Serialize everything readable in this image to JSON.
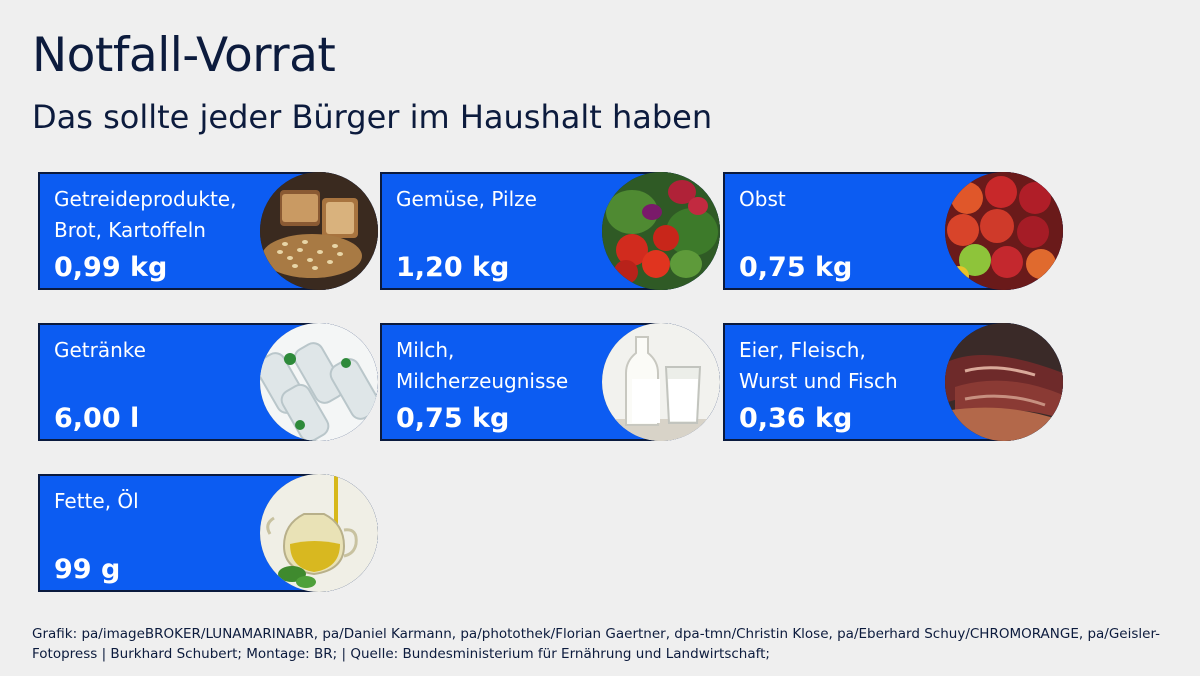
{
  "header": {
    "title": "Notfall-Vorrat",
    "subtitle": "Das sollte jeder Bürger im Haushalt haben"
  },
  "items": [
    {
      "label": "Getreideprodukte,\nBrot, Kartoffeln",
      "value": "0,99 kg",
      "icon": "bread-photo"
    },
    {
      "label": "Gemüse, Pilze",
      "value": "1,20 kg",
      "icon": "vegetables-photo"
    },
    {
      "label": "Obst",
      "value": "0,75 kg",
      "icon": "apples-photo"
    },
    {
      "label": "Getränke",
      "value": "6,00 l",
      "icon": "water-bottles-photo"
    },
    {
      "label": "Milch,\nMilcherzeugnisse",
      "value": "0,75 kg",
      "icon": "milk-photo"
    },
    {
      "label": "Eier, Fleisch,\nWurst und Fisch",
      "value": "0,36 kg",
      "icon": "meat-photo"
    },
    {
      "label": "Fette, Öl",
      "value": "99 g",
      "icon": "oil-photo"
    }
  ],
  "footer": {
    "credits": "Grafik: pa/imageBROKER/LUNAMARINABR, pa/Daniel Karmann, pa/photothek/Florian Gaertner, dpa-tmn/Christin Klose, pa/Eberhard Schuy/CHROMORANGE, pa/Geisler-Fotopress | Burkhard Schubert; Montage: BR; | Quelle: Bundesministerium für Ernährung und Landwirtschaft;"
  },
  "colors": {
    "card_blue": "#0c5cf2",
    "navy": "#0c1b3d",
    "background": "#efefef"
  }
}
